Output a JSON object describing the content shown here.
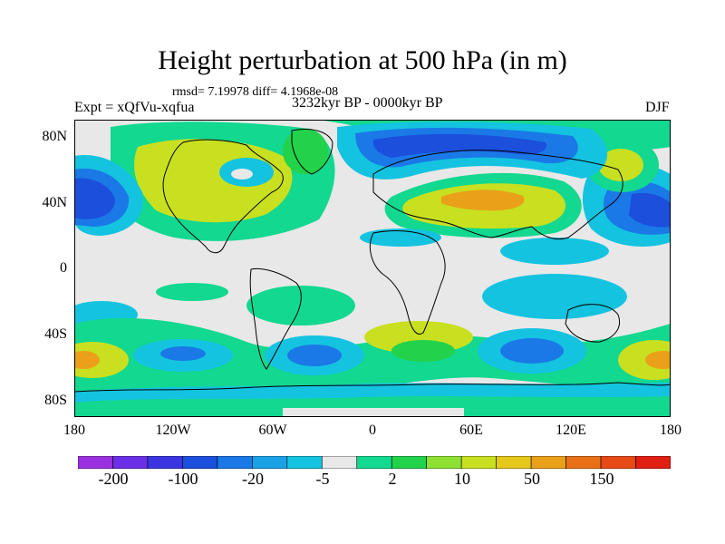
{
  "title": "Height perturbation at 500 hPa (in m)",
  "stats_line": "rmsd= 7.19978 diff= 4.1968e-08",
  "experiment": "Expt = xQfVu-xqfua",
  "period": "3232kyr BP - 0000kyr BP",
  "season": "DJF",
  "axes": {
    "y_ticks": [
      "80N",
      "40N",
      "0",
      "40S",
      "80S"
    ],
    "x_ticks": [
      "180",
      "120W",
      "60W",
      "0",
      "60E",
      "120E",
      "180"
    ]
  },
  "colorbar": {
    "colors": [
      "#9b30e0",
      "#6a2fe6",
      "#3a35e0",
      "#1b4fdc",
      "#1a79e6",
      "#1aa2e6",
      "#14c3e0",
      "#e8e8e8",
      "#12d890",
      "#22d24a",
      "#8ee032",
      "#c8e020",
      "#e6c81a",
      "#eaa018",
      "#ea7016",
      "#e84a16",
      "#e01e12"
    ],
    "labels": [
      "-200",
      "-100",
      "-20",
      "-5",
      "2",
      "10",
      "50",
      "150"
    ]
  },
  "field_colors": {
    "background": "#e8e8e8",
    "blue_dark": "#1b4fdc",
    "blue_mid": "#1a79e6",
    "blue_light": "#14c3e0",
    "green": "#12d890",
    "green_bright": "#22d24a",
    "yellow_green": "#c8e020",
    "orange": "#eaa018"
  }
}
